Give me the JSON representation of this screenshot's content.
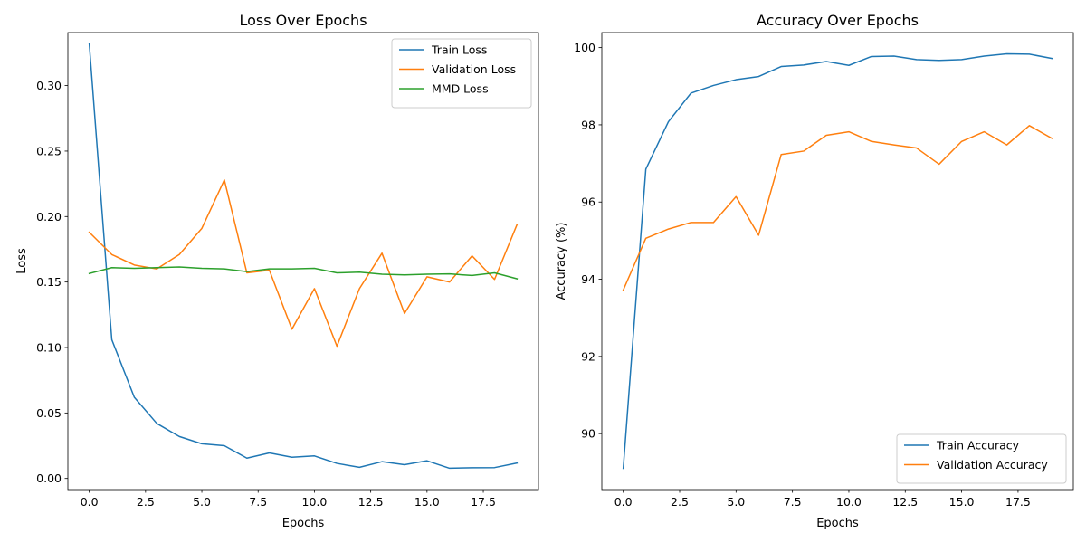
{
  "chart_data": [
    {
      "type": "line",
      "title": "Loss Over Epochs",
      "xlabel": "Epochs",
      "ylabel": "Loss",
      "xlim": [
        -0.95,
        19.95
      ],
      "ylim": [
        -0.0085,
        0.3405
      ],
      "xticks": [
        0.0,
        2.5,
        5.0,
        7.5,
        10.0,
        12.5,
        15.0,
        17.5
      ],
      "xtick_labels": [
        "0.0",
        "2.5",
        "5.0",
        "7.5",
        "10.0",
        "12.5",
        "15.0",
        "17.5"
      ],
      "yticks": [
        0.0,
        0.05,
        0.1,
        0.15,
        0.2,
        0.25,
        0.3
      ],
      "ytick_labels": [
        "0.00",
        "0.05",
        "0.10",
        "0.15",
        "0.20",
        "0.25",
        "0.30"
      ],
      "legend_position": "top-right",
      "grid": false,
      "x": [
        0,
        1,
        2,
        3,
        4,
        5,
        6,
        7,
        8,
        9,
        10,
        11,
        12,
        13,
        14,
        15,
        16,
        17,
        18,
        19
      ],
      "series": [
        {
          "name": "Train Loss",
          "color": "#1f77b4",
          "values": [
            0.332,
            0.106,
            0.062,
            0.042,
            0.032,
            0.0265,
            0.025,
            0.0155,
            0.0195,
            0.0162,
            0.0172,
            0.0115,
            0.0085,
            0.0128,
            0.0105,
            0.0135,
            0.0078,
            0.0082,
            0.0083,
            0.0118
          ]
        },
        {
          "name": "Validation Loss",
          "color": "#ff7f0e",
          "values": [
            0.188,
            0.171,
            0.163,
            0.16,
            0.171,
            0.191,
            0.228,
            0.157,
            0.159,
            0.114,
            0.145,
            0.101,
            0.145,
            0.172,
            0.126,
            0.154,
            0.15,
            0.17,
            0.152,
            0.194
          ]
        },
        {
          "name": "MMD Loss",
          "color": "#2ca02c",
          "values": [
            0.1565,
            0.161,
            0.1605,
            0.161,
            0.1615,
            0.1605,
            0.16,
            0.158,
            0.16,
            0.16,
            0.1605,
            0.157,
            0.1575,
            0.156,
            0.1555,
            0.156,
            0.1562,
            0.155,
            0.157,
            0.1525
          ]
        }
      ]
    },
    {
      "type": "line",
      "title": "Accuracy Over Epochs",
      "xlabel": "Epochs",
      "ylabel": "Accuracy (%)",
      "xlim": [
        -0.95,
        19.95
      ],
      "ylim": [
        88.55,
        100.39
      ],
      "xticks": [
        0.0,
        2.5,
        5.0,
        7.5,
        10.0,
        12.5,
        15.0,
        17.5
      ],
      "xtick_labels": [
        "0.0",
        "2.5",
        "5.0",
        "7.5",
        "10.0",
        "12.5",
        "15.0",
        "17.5"
      ],
      "yticks": [
        90,
        92,
        94,
        96,
        98,
        100
      ],
      "ytick_labels": [
        "90",
        "92",
        "94",
        "96",
        "98",
        "100"
      ],
      "legend_position": "bottom-right",
      "grid": false,
      "x": [
        0,
        1,
        2,
        3,
        4,
        5,
        6,
        7,
        8,
        9,
        10,
        11,
        12,
        13,
        14,
        15,
        16,
        17,
        18,
        19
      ],
      "series": [
        {
          "name": "Train Accuracy",
          "color": "#1f77b4",
          "values": [
            89.1,
            96.85,
            98.08,
            98.82,
            99.02,
            99.17,
            99.25,
            99.51,
            99.55,
            99.64,
            99.54,
            99.77,
            99.78,
            99.69,
            99.67,
            99.69,
            99.78,
            99.84,
            99.83,
            99.72
          ]
        },
        {
          "name": "Validation Accuracy",
          "color": "#ff7f0e",
          "values": [
            93.72,
            95.06,
            95.3,
            95.47,
            95.47,
            96.14,
            95.14,
            97.23,
            97.32,
            97.73,
            97.82,
            97.57,
            97.48,
            97.4,
            96.98,
            97.57,
            97.82,
            97.48,
            97.98,
            97.65
          ]
        }
      ]
    }
  ]
}
